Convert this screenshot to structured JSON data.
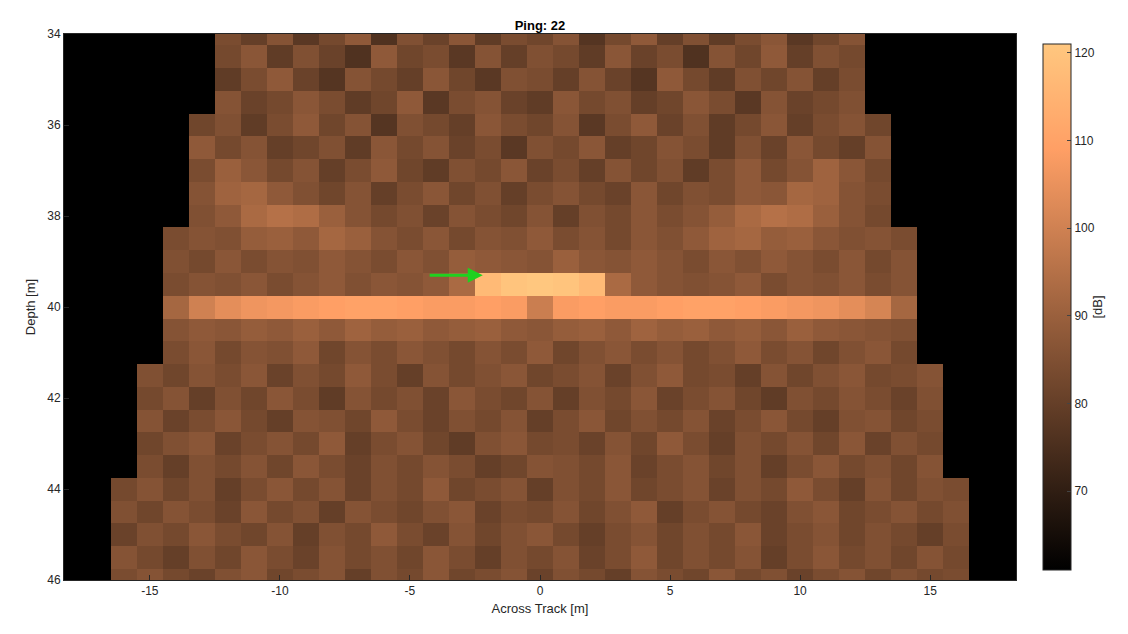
{
  "chart_data": {
    "type": "heatmap",
    "title": "Ping: 22",
    "x_label": "Across Track [m]",
    "y_label": "Depth [m]",
    "xlim": [
      -18.3,
      18.3
    ],
    "ylim": [
      46,
      34
    ],
    "xticks": [
      -15,
      -10,
      -5,
      0,
      5,
      10,
      15
    ],
    "yticks": [
      34,
      36,
      38,
      40,
      42,
      44,
      46
    ],
    "grid": false,
    "colorbar_title": "[dB]",
    "colorbar_range": [
      61,
      121
    ],
    "colorbar_ticks": [
      70,
      80,
      90,
      100,
      110,
      120
    ],
    "arrow": {
      "x": -2.2,
      "y": 39.3,
      "from_x": -4.3,
      "from_y": 39.3,
      "color": "#1fd11f"
    },
    "x": [
      -17,
      -16,
      -15,
      -14,
      -13,
      -12,
      -11,
      -10,
      -9,
      -8,
      -7,
      -6,
      -5,
      -4,
      -3,
      -2,
      -1,
      0,
      1,
      2,
      3,
      4,
      5,
      6,
      7,
      8,
      9,
      10,
      11,
      12,
      13,
      14,
      15,
      16,
      17
    ],
    "y": [
      34,
      34.5,
      35,
      35.5,
      36,
      36.5,
      37,
      37.5,
      38,
      38.5,
      39,
      39.5,
      40,
      40.5,
      41,
      41.5,
      42,
      42.5,
      43,
      43.5,
      44,
      44.5,
      45,
      45.5,
      46
    ],
    "cells": [
      [
        null,
        null,
        null,
        null,
        null,
        84,
        80,
        86,
        78,
        83,
        88,
        76,
        85,
        81,
        87,
        79,
        84,
        82,
        86,
        77,
        83,
        88,
        80,
        85,
        79,
        84,
        87,
        78,
        82,
        86,
        null,
        null,
        null,
        null,
        null
      ],
      [
        null,
        null,
        null,
        null,
        null,
        83,
        87,
        79,
        85,
        81,
        76,
        88,
        82,
        84,
        78,
        86,
        80,
        85,
        83,
        79,
        87,
        81,
        84,
        76,
        86,
        82,
        88,
        80,
        85,
        83,
        null,
        null,
        null,
        null,
        null
      ],
      [
        null,
        null,
        null,
        null,
        null,
        79,
        84,
        88,
        81,
        77,
        86,
        83,
        80,
        87,
        82,
        78,
        85,
        84,
        80,
        86,
        81,
        77,
        88,
        83,
        79,
        85,
        82,
        86,
        80,
        84,
        null,
        null,
        null,
        null,
        null
      ],
      [
        null,
        null,
        null,
        null,
        null,
        86,
        81,
        83,
        87,
        84,
        79,
        82,
        88,
        78,
        84,
        86,
        81,
        79,
        87,
        83,
        85,
        80,
        82,
        87,
        84,
        78,
        86,
        81,
        83,
        85,
        null,
        null,
        null,
        null,
        null
      ],
      [
        null,
        null,
        null,
        null,
        82,
        85,
        79,
        84,
        88,
        82,
        86,
        77,
        85,
        83,
        80,
        87,
        84,
        82,
        86,
        78,
        84,
        88,
        81,
        85,
        79,
        83,
        87,
        80,
        84,
        86,
        82,
        null,
        null,
        null,
        null
      ],
      [
        null,
        null,
        null,
        null,
        88,
        83,
        86,
        80,
        82,
        85,
        79,
        87,
        83,
        86,
        81,
        84,
        78,
        85,
        83,
        87,
        80,
        82,
        86,
        84,
        79,
        85,
        81,
        87,
        83,
        80,
        86,
        null,
        null,
        null,
        null
      ],
      [
        null,
        null,
        null,
        null,
        84,
        90,
        87,
        83,
        86,
        80,
        84,
        88,
        82,
        79,
        85,
        83,
        87,
        81,
        84,
        80,
        86,
        82,
        85,
        79,
        84,
        88,
        83,
        86,
        91,
        87,
        83,
        null,
        null,
        null,
        null
      ],
      [
        null,
        null,
        null,
        null,
        86,
        91,
        92,
        88,
        85,
        82,
        86,
        80,
        84,
        87,
        82,
        85,
        80,
        84,
        86,
        83,
        81,
        87,
        82,
        85,
        84,
        88,
        87,
        92,
        91,
        86,
        84,
        null,
        null,
        null,
        null
      ],
      [
        null,
        null,
        null,
        null,
        85,
        88,
        93,
        95,
        94,
        90,
        86,
        83,
        85,
        81,
        86,
        84,
        82,
        86,
        80,
        85,
        83,
        87,
        84,
        86,
        89,
        93,
        95,
        94,
        90,
        86,
        83,
        null,
        null,
        null,
        null
      ],
      [
        null,
        null,
        null,
        84,
        86,
        85,
        89,
        90,
        88,
        92,
        90,
        86,
        84,
        87,
        83,
        86,
        85,
        88,
        84,
        86,
        83,
        87,
        85,
        88,
        91,
        92,
        89,
        90,
        87,
        85,
        86,
        84,
        null,
        null,
        null
      ],
      [
        null,
        null,
        null,
        85,
        83,
        87,
        84,
        86,
        85,
        88,
        86,
        84,
        87,
        85,
        89,
        88,
        87,
        86,
        90,
        87,
        86,
        88,
        86,
        84,
        87,
        85,
        88,
        86,
        84,
        87,
        83,
        86,
        null,
        null,
        null
      ],
      [
        null,
        null,
        null,
        84,
        86,
        85,
        87,
        84,
        86,
        88,
        85,
        87,
        86,
        88,
        93,
        117,
        120,
        121,
        120,
        117,
        93,
        88,
        86,
        85,
        86,
        88,
        84,
        86,
        85,
        87,
        84,
        86,
        null,
        null,
        null
      ],
      [
        null,
        null,
        null,
        92,
        100,
        104,
        106,
        107,
        108,
        109,
        110,
        110,
        109,
        108,
        108,
        109,
        108,
        99,
        108,
        109,
        108,
        108,
        109,
        110,
        110,
        109,
        108,
        107,
        106,
        104,
        101,
        92,
        null,
        null,
        null
      ],
      [
        null,
        null,
        null,
        86,
        88,
        87,
        89,
        88,
        90,
        88,
        91,
        89,
        90,
        88,
        89,
        90,
        88,
        87,
        89,
        90,
        88,
        91,
        89,
        90,
        88,
        89,
        87,
        90,
        88,
        87,
        86,
        85,
        null,
        null,
        null
      ],
      [
        null,
        null,
        null,
        84,
        87,
        83,
        86,
        85,
        88,
        82,
        86,
        84,
        87,
        85,
        83,
        86,
        84,
        88,
        82,
        85,
        87,
        84,
        86,
        83,
        85,
        88,
        84,
        86,
        82,
        85,
        87,
        83,
        null,
        null,
        null
      ],
      [
        null,
        null,
        85,
        82,
        86,
        84,
        87,
        81,
        85,
        83,
        88,
        84,
        80,
        86,
        83,
        85,
        87,
        82,
        84,
        86,
        81,
        85,
        88,
        83,
        84,
        80,
        86,
        82,
        85,
        87,
        83,
        84,
        86,
        null,
        null
      ],
      [
        null,
        null,
        83,
        86,
        80,
        85,
        82,
        87,
        84,
        79,
        86,
        83,
        85,
        81,
        87,
        84,
        82,
        86,
        80,
        85,
        83,
        87,
        81,
        84,
        86,
        82,
        79,
        85,
        83,
        86,
        84,
        81,
        85,
        null,
        null
      ],
      [
        null,
        null,
        86,
        81,
        84,
        87,
        83,
        80,
        86,
        85,
        82,
        88,
        84,
        81,
        85,
        83,
        86,
        80,
        84,
        87,
        82,
        85,
        83,
        86,
        81,
        84,
        87,
        83,
        80,
        85,
        86,
        82,
        84,
        null,
        null
      ],
      [
        null,
        null,
        82,
        85,
        87,
        81,
        84,
        86,
        83,
        88,
        80,
        84,
        86,
        82,
        79,
        85,
        87,
        83,
        84,
        81,
        86,
        82,
        88,
        84,
        80,
        85,
        83,
        86,
        82,
        87,
        81,
        85,
        83,
        null,
        null
      ],
      [
        null,
        null,
        84,
        80,
        85,
        83,
        86,
        82,
        87,
        84,
        81,
        85,
        83,
        86,
        84,
        80,
        82,
        86,
        85,
        83,
        87,
        81,
        84,
        86,
        82,
        85,
        80,
        84,
        87,
        83,
        85,
        82,
        86,
        null,
        null
      ],
      [
        null,
        83,
        86,
        82,
        85,
        80,
        84,
        87,
        83,
        86,
        81,
        85,
        83,
        88,
        82,
        84,
        86,
        80,
        85,
        83,
        87,
        82,
        84,
        86,
        81,
        85,
        83,
        88,
        84,
        80,
        86,
        82,
        85,
        84,
        null
      ],
      [
        null,
        85,
        82,
        86,
        84,
        81,
        87,
        83,
        85,
        80,
        86,
        84,
        82,
        85,
        87,
        81,
        84,
        83,
        86,
        82,
        85,
        88,
        80,
        84,
        86,
        83,
        81,
        85,
        87,
        82,
        84,
        86,
        83,
        85,
        null
      ],
      [
        null,
        81,
        85,
        83,
        87,
        84,
        82,
        86,
        80,
        85,
        83,
        88,
        84,
        81,
        86,
        82,
        85,
        87,
        83,
        80,
        84,
        86,
        82,
        85,
        83,
        87,
        81,
        84,
        86,
        82,
        85,
        83,
        80,
        84,
        null
      ],
      [
        null,
        86,
        83,
        80,
        85,
        82,
        87,
        84,
        81,
        86,
        83,
        85,
        82,
        87,
        84,
        80,
        85,
        83,
        86,
        81,
        84,
        88,
        82,
        85,
        83,
        86,
        80,
        84,
        87,
        83,
        85,
        82,
        86,
        83,
        null
      ],
      [
        null,
        84,
        86,
        83,
        81,
        85,
        87,
        82,
        84,
        86,
        80,
        85,
        83,
        87,
        82,
        84,
        86,
        81,
        85,
        83,
        80,
        86,
        84,
        82,
        87,
        83,
        85,
        81,
        84,
        86,
        82,
        85,
        83,
        84,
        null
      ]
    ]
  }
}
